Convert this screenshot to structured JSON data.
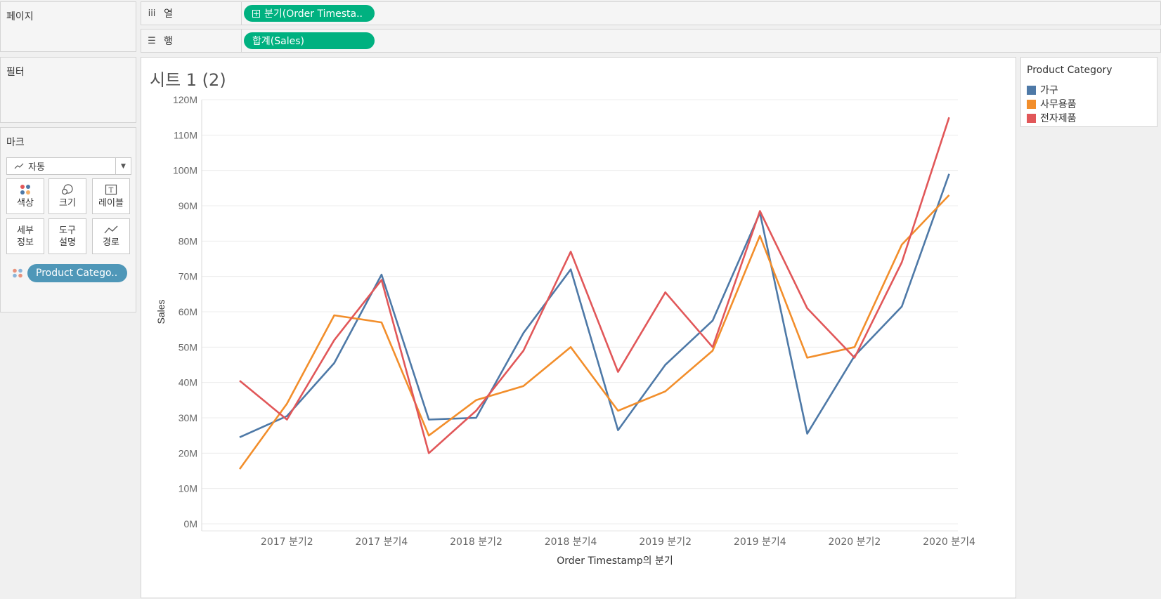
{
  "pages": {
    "title": "페이지"
  },
  "filters": {
    "title": "필터"
  },
  "marks": {
    "title": "마크",
    "mark_type": "자동",
    "buttons": [
      {
        "label": "색상",
        "icon": "color-icon"
      },
      {
        "label": "크기",
        "icon": "size-icon"
      },
      {
        "label": "레이블",
        "icon": "label-icon"
      },
      {
        "label": "세부\n정보",
        "icon": "detail-icon"
      },
      {
        "label": "도구\n설명",
        "icon": "tooltip-icon"
      },
      {
        "label": "경로",
        "icon": "path-icon"
      }
    ],
    "color_pill": "Product Catego.."
  },
  "shelves": {
    "columns": {
      "label": "열",
      "pill": "분기(Order Timesta.."
    },
    "rows": {
      "label": "행",
      "pill": "합계(Sales)"
    }
  },
  "sheet": {
    "title": "시트 1 (2)"
  },
  "legend": {
    "title": "Product Category",
    "items": [
      {
        "name": "가구",
        "color": "#4e79a7"
      },
      {
        "name": "사무용품",
        "color": "#f28e2b"
      },
      {
        "name": "전자제품",
        "color": "#e15759"
      }
    ]
  },
  "chart_data": {
    "type": "line",
    "xlabel": "Order Timestamp의 분기",
    "ylabel": "Sales",
    "ylim": [
      0,
      120
    ],
    "y_unit": "M",
    "y_ticks": [
      "0M",
      "10M",
      "20M",
      "30M",
      "40M",
      "50M",
      "60M",
      "70M",
      "80M",
      "90M",
      "100M",
      "110M",
      "120M"
    ],
    "x_tick_labels": [
      "2017 분기2",
      "2017 분기4",
      "2018 분기2",
      "2018 분기4",
      "2019 분기2",
      "2019 분기4",
      "2020 분기2",
      "2020 분기4"
    ],
    "categories": [
      "2017 분기1",
      "2017 분기2",
      "2017 분기3",
      "2017 분기4",
      "2018 분기1",
      "2018 분기2",
      "2018 분기3",
      "2018 분기4",
      "2019 분기1",
      "2019 분기2",
      "2019 분기3",
      "2019 분기4",
      "2020 분기1",
      "2020 분기2",
      "2020 분기3",
      "2020 분기4"
    ],
    "grid": true,
    "series": [
      {
        "name": "가구",
        "color": "#4e79a7",
        "values": [
          24.5,
          30.5,
          45.5,
          70.5,
          29.5,
          30,
          54,
          72,
          26.5,
          45,
          57.5,
          88,
          25.5,
          47.5,
          61.5,
          99
        ]
      },
      {
        "name": "사무용품",
        "color": "#f28e2b",
        "values": [
          15.5,
          34,
          59,
          57,
          25,
          35,
          39,
          50,
          32,
          37.5,
          49,
          81.5,
          47,
          50,
          79,
          93
        ]
      },
      {
        "name": "전자제품",
        "color": "#e15759",
        "values": [
          40.5,
          29.5,
          52,
          69,
          20,
          32,
          49,
          77,
          43,
          65.5,
          50,
          88.5,
          61,
          47,
          74,
          115
        ]
      }
    ]
  }
}
